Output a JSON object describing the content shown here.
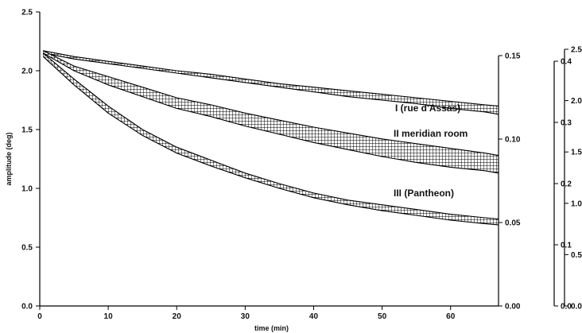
{
  "chart_data": {
    "type": "area",
    "title": "",
    "xlabel": "time (min)",
    "ylabel": "amplitude (deg)",
    "xlim": [
      0,
      67
    ],
    "ylim": [
      0,
      2.5
    ],
    "grid": false,
    "x_ticks": [
      0,
      10,
      20,
      30,
      40,
      50,
      60
    ],
    "y_ticks": [
      "0.0",
      "0.5",
      "1.0",
      "1.5",
      "2.0",
      "2.5"
    ],
    "right_axes": [
      {
        "ticks": [
          "0.00",
          "0.05",
          "0.10",
          "0.15"
        ]
      },
      {
        "ticks": [
          "0.0",
          "0.1",
          "0.2",
          "0.3",
          "0.4"
        ]
      },
      {
        "ticks": [
          "0.0",
          "0.5",
          "1.0",
          "1.5",
          "2.0",
          "2.5"
        ]
      }
    ],
    "x": [
      0.5,
      5,
      10,
      15,
      20,
      25,
      30,
      35,
      40,
      45,
      50,
      55,
      60,
      65,
      67
    ],
    "series": [
      {
        "name": "I (rue d'Assas)",
        "upper": [
          2.17,
          2.12,
          2.08,
          2.04,
          2.0,
          1.97,
          1.93,
          1.89,
          1.86,
          1.83,
          1.8,
          1.77,
          1.74,
          1.71,
          1.7
        ],
        "lower": [
          2.15,
          2.1,
          2.06,
          2.02,
          1.98,
          1.94,
          1.9,
          1.86,
          1.82,
          1.78,
          1.75,
          1.72,
          1.68,
          1.65,
          1.63
        ]
      },
      {
        "name": "II meridian room",
        "upper": [
          2.17,
          2.04,
          1.95,
          1.86,
          1.77,
          1.71,
          1.64,
          1.58,
          1.52,
          1.47,
          1.42,
          1.38,
          1.34,
          1.3,
          1.28
        ],
        "lower": [
          2.15,
          2.0,
          1.88,
          1.78,
          1.68,
          1.61,
          1.53,
          1.46,
          1.39,
          1.33,
          1.27,
          1.22,
          1.18,
          1.15,
          1.13
        ]
      },
      {
        "name": "III (Pantheon)",
        "upper": [
          2.15,
          1.93,
          1.7,
          1.5,
          1.35,
          1.24,
          1.13,
          1.04,
          0.96,
          0.9,
          0.86,
          0.82,
          0.78,
          0.75,
          0.74
        ],
        "lower": [
          2.12,
          1.88,
          1.64,
          1.45,
          1.3,
          1.19,
          1.09,
          1.0,
          0.92,
          0.86,
          0.81,
          0.77,
          0.73,
          0.7,
          0.69
        ]
      }
    ]
  }
}
